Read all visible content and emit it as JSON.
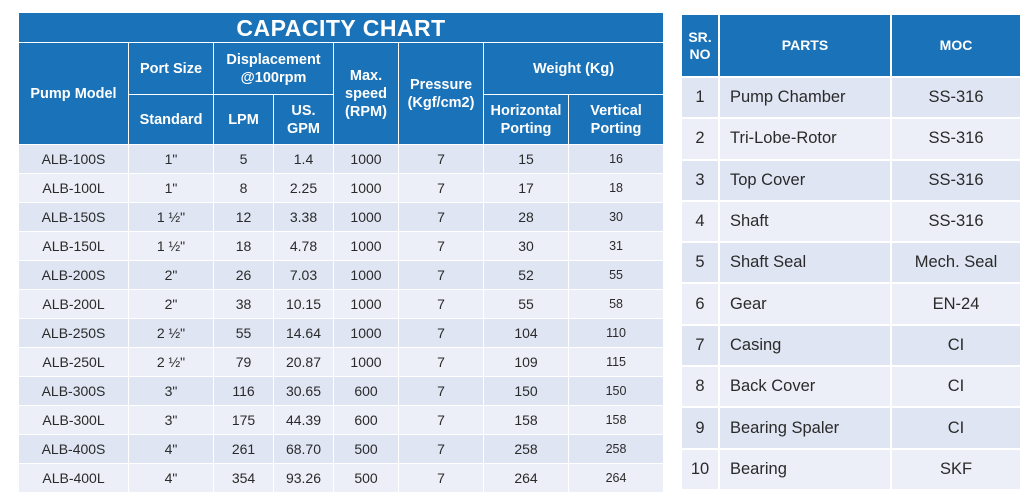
{
  "capacity_chart": {
    "title": "CAPACITY CHART",
    "headers": {
      "pump_model": "Pump Model",
      "port_size": "Port Size",
      "port_standard": "Standard",
      "displacement": "Displacement @100rpm",
      "lpm": "LPM",
      "us_gpm": "US. GPM",
      "max_speed": "Max. speed (RPM)",
      "pressure": "Pressure (Kgf/cm2)",
      "weight": "Weight (Kg)",
      "horizontal": "Horizontal Porting",
      "vertical": "Vertical Porting"
    },
    "rows": [
      {
        "model": "ALB-100S",
        "port": "1\"",
        "lpm": "5",
        "gpm": "1.4",
        "speed": "1000",
        "pressure": "7",
        "w_h": "15",
        "w_v": "16"
      },
      {
        "model": "ALB-100L",
        "port": "1\"",
        "lpm": "8",
        "gpm": "2.25",
        "speed": "1000",
        "pressure": "7",
        "w_h": "17",
        "w_v": "18"
      },
      {
        "model": "ALB-150S",
        "port": "1 ½\"",
        "lpm": "12",
        "gpm": "3.38",
        "speed": "1000",
        "pressure": "7",
        "w_h": "28",
        "w_v": "30"
      },
      {
        "model": "ALB-150L",
        "port": "1 ½\"",
        "lpm": "18",
        "gpm": "4.78",
        "speed": "1000",
        "pressure": "7",
        "w_h": "30",
        "w_v": "31"
      },
      {
        "model": "ALB-200S",
        "port": "2\"",
        "lpm": "26",
        "gpm": "7.03",
        "speed": "1000",
        "pressure": "7",
        "w_h": "52",
        "w_v": "55"
      },
      {
        "model": "ALB-200L",
        "port": "2\"",
        "lpm": "38",
        "gpm": "10.15",
        "speed": "1000",
        "pressure": "7",
        "w_h": "55",
        "w_v": "58"
      },
      {
        "model": "ALB-250S",
        "port": "2 ½\"",
        "lpm": "55",
        "gpm": "14.64",
        "speed": "1000",
        "pressure": "7",
        "w_h": "104",
        "w_v": "110"
      },
      {
        "model": "ALB-250L",
        "port": "2 ½\"",
        "lpm": "79",
        "gpm": "20.87",
        "speed": "1000",
        "pressure": "7",
        "w_h": "109",
        "w_v": "115"
      },
      {
        "model": "ALB-300S",
        "port": "3\"",
        "lpm": "116",
        "gpm": "30.65",
        "speed": "600",
        "pressure": "7",
        "w_h": "150",
        "w_v": "150"
      },
      {
        "model": "ALB-300L",
        "port": "3\"",
        "lpm": "175",
        "gpm": "44.39",
        "speed": "600",
        "pressure": "7",
        "w_h": "158",
        "w_v": "158"
      },
      {
        "model": "ALB-400S",
        "port": "4\"",
        "lpm": "261",
        "gpm": "68.70",
        "speed": "500",
        "pressure": "7",
        "w_h": "258",
        "w_v": "258"
      },
      {
        "model": "ALB-400L",
        "port": "4\"",
        "lpm": "354",
        "gpm": "93.26",
        "speed": "500",
        "pressure": "7",
        "w_h": "264",
        "w_v": "264"
      }
    ]
  },
  "parts_table": {
    "headers": {
      "sr_no": "SR. NO",
      "parts": "PARTS",
      "moc": "MOC"
    },
    "rows": [
      {
        "sr": "1",
        "part": "Pump Chamber",
        "moc": "SS-316"
      },
      {
        "sr": "2",
        "part": "Tri-Lobe-Rotor",
        "moc": "SS-316"
      },
      {
        "sr": "3",
        "part": "Top Cover",
        "moc": "SS-316"
      },
      {
        "sr": "4",
        "part": "Shaft",
        "moc": "SS-316"
      },
      {
        "sr": "5",
        "part": "Shaft Seal",
        "moc": "Mech. Seal"
      },
      {
        "sr": "6",
        "part": "Gear",
        "moc": "EN-24"
      },
      {
        "sr": "7",
        "part": "Casing",
        "moc": "CI"
      },
      {
        "sr": "8",
        "part": "Back Cover",
        "moc": "CI"
      },
      {
        "sr": "9",
        "part": "Bearing Spaler",
        "moc": "CI"
      },
      {
        "sr": "10",
        "part": "Bearing",
        "moc": "SKF"
      }
    ]
  },
  "colors": {
    "header": "#1a72b9",
    "row_a": "#dfe5f3",
    "row_b": "#eceff7"
  }
}
